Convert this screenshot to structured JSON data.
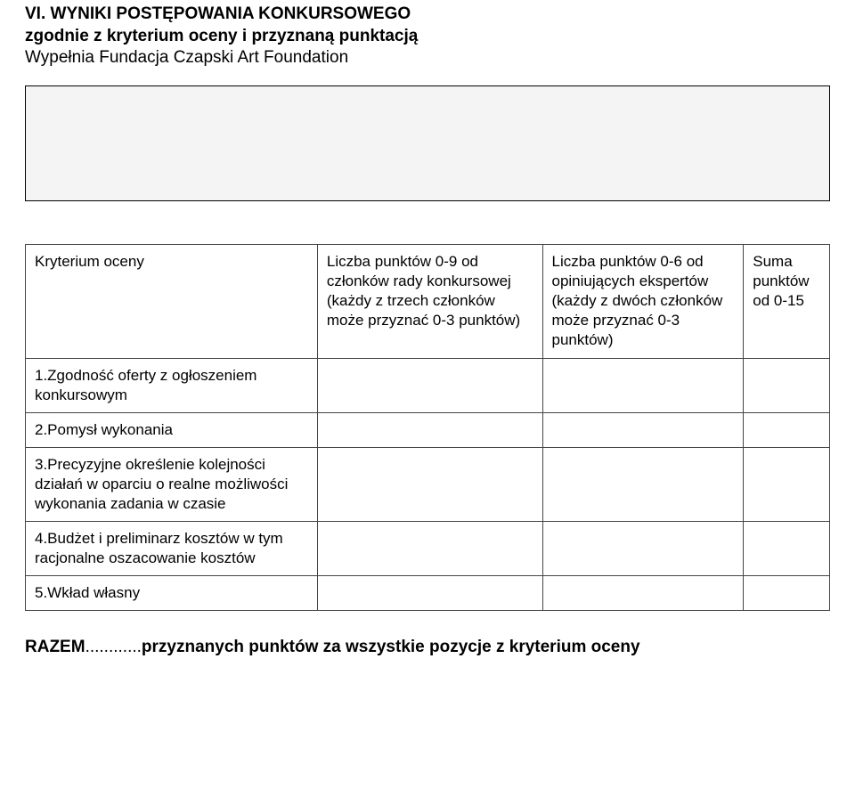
{
  "header": {
    "line1": "VI. WYNIKI POSTĘPOWANIA KONKURSOWEGO",
    "line2": "zgodnie z kryterium oceny i przyznaną punktacją",
    "line3": "Wypełnia Fundacja Czapski Art Foundation"
  },
  "table": {
    "columns": [
      "Kryterium oceny",
      "Liczba punktów 0-9 od członków rady konkursowej (każdy z trzech członków może przyznać 0-3 punktów)",
      "Liczba punktów 0-6 od opiniujących ekspertów (każdy z dwóch członków może przyznać 0-3 punktów)",
      "Suma punktów od 0-15"
    ],
    "rows": [
      {
        "label": "1.Zgodność oferty z ogłoszeniem konkursowym",
        "c1": "",
        "c2": "",
        "c3": ""
      },
      {
        "label": "2.Pomysł wykonania",
        "c1": "",
        "c2": "",
        "c3": ""
      },
      {
        "label": "3.Precyzyjne określenie kolejności działań w oparciu o realne możliwości wykonania zadania w czasie",
        "c1": "",
        "c2": "",
        "c3": ""
      },
      {
        "label": "4.Budżet i preliminarz kosztów w tym racjonalne oszacowanie kosztów",
        "c1": "",
        "c2": "",
        "c3": ""
      },
      {
        "label": "5.Wkład własny",
        "c1": "",
        "c2": "",
        "c3": ""
      }
    ]
  },
  "summary": {
    "prefix": "RAZEM",
    "dots": "............",
    "suffix": "przyznanych punktów za wszystkie pozycje z kryterium oceny"
  },
  "style": {
    "heading_fontsize": 19,
    "body_fontsize": 17,
    "border_color": "#444444",
    "blank_box_bg": "#f4f4f4",
    "text_color": "#000000",
    "page_bg": "#ffffff"
  }
}
